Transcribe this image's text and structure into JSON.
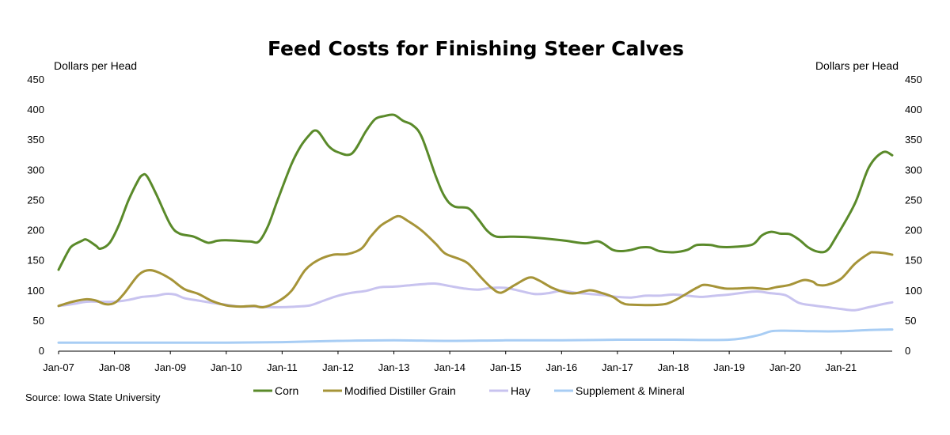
{
  "chart_data": {
    "type": "line",
    "title": "Feed Costs for Finishing Steer Calves",
    "ylabel_left": "Dollars per Head",
    "ylabel_right": "Dollars per Head",
    "source": "Source: Iowa State University",
    "ylim": [
      0,
      450
    ],
    "yticks": [
      "0",
      "50",
      "100",
      "150",
      "200",
      "250",
      "300",
      "350",
      "400",
      "450"
    ],
    "x_start": "Jan-07",
    "x_end": "Dec-21",
    "xticks": [
      "Jan-07",
      "Jan-08",
      "Jan-09",
      "Jan-10",
      "Jan-11",
      "Jan-12",
      "Jan-13",
      "Jan-14",
      "Jan-15",
      "Jan-16",
      "Jan-17",
      "Jan-18",
      "Jan-19",
      "Jan-20",
      "Jan-21"
    ],
    "grid": false,
    "legend_position": "bottom",
    "series": [
      {
        "name": "Corn",
        "color": "#5a8a2a",
        "points": [
          [
            "Jan-07",
            135
          ],
          [
            "Mar-07",
            165
          ],
          [
            "Apr-07",
            175
          ],
          [
            "Jun-07",
            183
          ],
          [
            "Jul-07",
            185
          ],
          [
            "Sep-07",
            175
          ],
          [
            "Oct-07",
            170
          ],
          [
            "Dec-07",
            180
          ],
          [
            "Feb-08",
            210
          ],
          [
            "Apr-08",
            250
          ],
          [
            "Jun-08",
            282
          ],
          [
            "Jul-08",
            292
          ],
          [
            "Aug-08",
            290
          ],
          [
            "Oct-08",
            260
          ],
          [
            "Jan-09",
            210
          ],
          [
            "Mar-09",
            195
          ],
          [
            "Jun-09",
            190
          ],
          [
            "Sep-09",
            180
          ],
          [
            "Nov-09",
            183
          ],
          [
            "Jan-10",
            184
          ],
          [
            "Jun-10",
            182
          ],
          [
            "Aug-10",
            182
          ],
          [
            "Oct-10",
            208
          ],
          [
            "Dec-10",
            250
          ],
          [
            "Mar-11",
            310
          ],
          [
            "May-11",
            340
          ],
          [
            "Jul-11",
            360
          ],
          [
            "Aug-11",
            366
          ],
          [
            "Sep-11",
            362
          ],
          [
            "Nov-11",
            340
          ],
          [
            "Jan-12",
            330
          ],
          [
            "Apr-12",
            328
          ],
          [
            "Jul-12",
            365
          ],
          [
            "Sep-12",
            385
          ],
          [
            "Nov-12",
            390
          ],
          [
            "Jan-13",
            392
          ],
          [
            "Mar-13",
            382
          ],
          [
            "May-13",
            375
          ],
          [
            "Jul-13",
            355
          ],
          [
            "Oct-13",
            290
          ],
          [
            "Dec-13",
            255
          ],
          [
            "Feb-14",
            240
          ],
          [
            "May-14",
            237
          ],
          [
            "Jul-14",
            220
          ],
          [
            "Sep-14",
            200
          ],
          [
            "Nov-14",
            190
          ],
          [
            "Feb-15",
            190
          ],
          [
            "Jun-15",
            189
          ],
          [
            "Jan-16",
            184
          ],
          [
            "Jun-16",
            179
          ],
          [
            "Sep-16",
            182
          ],
          [
            "Dec-16",
            168
          ],
          [
            "Feb-17",
            166
          ],
          [
            "Apr-17",
            168
          ],
          [
            "Jun-17",
            172
          ],
          [
            "Aug-17",
            172
          ],
          [
            "Oct-17",
            166
          ],
          [
            "Jan-18",
            164
          ],
          [
            "Apr-18",
            168
          ],
          [
            "Jun-18",
            176
          ],
          [
            "Sep-18",
            176
          ],
          [
            "Nov-18",
            173
          ],
          [
            "Feb-19",
            173
          ],
          [
            "Jun-19",
            177
          ],
          [
            "Aug-19",
            192
          ],
          [
            "Oct-19",
            198
          ],
          [
            "Dec-19",
            195
          ],
          [
            "Feb-20",
            194
          ],
          [
            "Apr-20",
            185
          ],
          [
            "Jun-20",
            172
          ],
          [
            "Aug-20",
            165
          ],
          [
            "Oct-20",
            167
          ],
          [
            "Dec-20",
            190
          ],
          [
            "Apr-21",
            245
          ],
          [
            "Jul-21",
            305
          ],
          [
            "Oct-21",
            330
          ],
          [
            "Dec-21",
            325
          ]
        ]
      },
      {
        "name": "Modified Distiller Grain",
        "color": "#a69438",
        "points": [
          [
            "Jan-07",
            75
          ],
          [
            "Apr-07",
            82
          ],
          [
            "Jul-07",
            86
          ],
          [
            "Sep-07",
            84
          ],
          [
            "Nov-07",
            78
          ],
          [
            "Jan-08",
            80
          ],
          [
            "Mar-08",
            95
          ],
          [
            "Jun-08",
            125
          ],
          [
            "Aug-08",
            134
          ],
          [
            "Oct-08",
            132
          ],
          [
            "Jan-09",
            120
          ],
          [
            "Apr-09",
            103
          ],
          [
            "Jul-09",
            95
          ],
          [
            "Oct-09",
            83
          ],
          [
            "Jan-10",
            76
          ],
          [
            "Apr-10",
            74
          ],
          [
            "Jul-10",
            75
          ],
          [
            "Sep-10",
            73
          ],
          [
            "Dec-10",
            82
          ],
          [
            "Mar-11",
            100
          ],
          [
            "Jun-11",
            135
          ],
          [
            "Sep-11",
            152
          ],
          [
            "Dec-11",
            160
          ],
          [
            "Mar-12",
            161
          ],
          [
            "Jun-12",
            170
          ],
          [
            "Aug-12",
            190
          ],
          [
            "Oct-12",
            207
          ],
          [
            "Dec-12",
            217
          ],
          [
            "Feb-13",
            224
          ],
          [
            "Apr-13",
            216
          ],
          [
            "Jul-13",
            200
          ],
          [
            "Oct-13",
            178
          ],
          [
            "Dec-13",
            162
          ],
          [
            "Mar-14",
            153
          ],
          [
            "May-14",
            145
          ],
          [
            "Aug-14",
            120
          ],
          [
            "Oct-14",
            105
          ],
          [
            "Dec-14",
            97
          ],
          [
            "Mar-15",
            110
          ],
          [
            "Jun-15",
            122
          ],
          [
            "Aug-15",
            118
          ],
          [
            "Nov-15",
            105
          ],
          [
            "Feb-16",
            97
          ],
          [
            "Apr-16",
            96
          ],
          [
            "Jul-16",
            101
          ],
          [
            "Sep-16",
            98
          ],
          [
            "Dec-16",
            90
          ],
          [
            "Feb-17",
            80
          ],
          [
            "Apr-17",
            77
          ],
          [
            "Oct-17",
            77
          ],
          [
            "Jan-18",
            83
          ],
          [
            "Jun-18",
            105
          ],
          [
            "Aug-18",
            110
          ],
          [
            "Dec-18",
            104
          ],
          [
            "Mar-19",
            104
          ],
          [
            "Jun-19",
            105
          ],
          [
            "Sep-19",
            103
          ],
          [
            "Nov-19",
            106
          ],
          [
            "Feb-20",
            110
          ],
          [
            "May-20",
            118
          ],
          [
            "Jul-20",
            115
          ],
          [
            "Aug-20",
            110
          ],
          [
            "Oct-20",
            110
          ],
          [
            "Jan-21",
            120
          ],
          [
            "Apr-21",
            145
          ],
          [
            "Jul-21",
            162
          ],
          [
            "Aug-21",
            164
          ],
          [
            "Oct-21",
            163
          ],
          [
            "Dec-21",
            160
          ]
        ]
      },
      {
        "name": "Hay",
        "color": "#c8c3ef",
        "points": [
          [
            "Jan-07",
            75
          ],
          [
            "Apr-07",
            78
          ],
          [
            "Jul-07",
            82
          ],
          [
            "Oct-07",
            82
          ],
          [
            "Jan-08",
            82
          ],
          [
            "Apr-08",
            85
          ],
          [
            "Jul-08",
            90
          ],
          [
            "Oct-08",
            92
          ],
          [
            "Dec-08",
            95
          ],
          [
            "Feb-09",
            94
          ],
          [
            "Apr-09",
            88
          ],
          [
            "Jul-09",
            84
          ],
          [
            "Oct-09",
            80
          ],
          [
            "Jan-10",
            77
          ],
          [
            "Apr-10",
            74
          ],
          [
            "Jul-10",
            74
          ],
          [
            "Oct-10",
            73
          ],
          [
            "Jan-11",
            73
          ],
          [
            "Apr-11",
            74
          ],
          [
            "Jul-11",
            76
          ],
          [
            "Oct-11",
            84
          ],
          [
            "Jan-12",
            92
          ],
          [
            "Apr-12",
            97
          ],
          [
            "Jul-12",
            100
          ],
          [
            "Oct-12",
            106
          ],
          [
            "Jan-13",
            107
          ],
          [
            "Apr-13",
            109
          ],
          [
            "Jul-13",
            111
          ],
          [
            "Oct-13",
            112
          ],
          [
            "Jan-14",
            108
          ],
          [
            "Apr-14",
            104
          ],
          [
            "Jul-14",
            102
          ],
          [
            "Oct-14",
            105
          ],
          [
            "Jan-15",
            105
          ],
          [
            "Mar-15",
            102
          ],
          [
            "Jul-15",
            95
          ],
          [
            "Oct-15",
            96
          ],
          [
            "Jan-16",
            100
          ],
          [
            "Apr-16",
            97
          ],
          [
            "Jul-16",
            95
          ],
          [
            "Oct-16",
            93
          ],
          [
            "Jan-17",
            90
          ],
          [
            "Apr-17",
            89
          ],
          [
            "Jul-17",
            92
          ],
          [
            "Oct-17",
            92
          ],
          [
            "Jan-18",
            94
          ],
          [
            "Apr-18",
            92
          ],
          [
            "Jul-18",
            90
          ],
          [
            "Oct-18",
            92
          ],
          [
            "Jan-19",
            94
          ],
          [
            "Apr-19",
            97
          ],
          [
            "Jul-19",
            99
          ],
          [
            "Oct-19",
            96
          ],
          [
            "Jan-20",
            93
          ],
          [
            "Apr-20",
            80
          ],
          [
            "Jul-20",
            76
          ],
          [
            "Oct-20",
            73
          ],
          [
            "Jan-21",
            70
          ],
          [
            "Apr-21",
            68
          ],
          [
            "Jul-21",
            73
          ],
          [
            "Oct-21",
            78
          ],
          [
            "Dec-21",
            81
          ]
        ]
      },
      {
        "name": "Supplement & Mineral",
        "color": "#a8cdf4",
        "points": [
          [
            "Jan-07",
            14
          ],
          [
            "Jan-08",
            14
          ],
          [
            "Jan-09",
            14
          ],
          [
            "Jan-10",
            14
          ],
          [
            "Jan-11",
            15
          ],
          [
            "Jan-12",
            17
          ],
          [
            "Jan-13",
            18
          ],
          [
            "Jan-14",
            17
          ],
          [
            "Jan-15",
            18
          ],
          [
            "Jan-16",
            18
          ],
          [
            "Jan-17",
            19
          ],
          [
            "Jan-18",
            19
          ],
          [
            "Jan-19",
            19
          ],
          [
            "Jul-19",
            26
          ],
          [
            "Oct-19",
            33
          ],
          [
            "Jan-20",
            34
          ],
          [
            "Jul-20",
            33
          ],
          [
            "Jan-21",
            33
          ],
          [
            "Jul-21",
            35
          ],
          [
            "Dec-21",
            36
          ]
        ]
      }
    ]
  }
}
